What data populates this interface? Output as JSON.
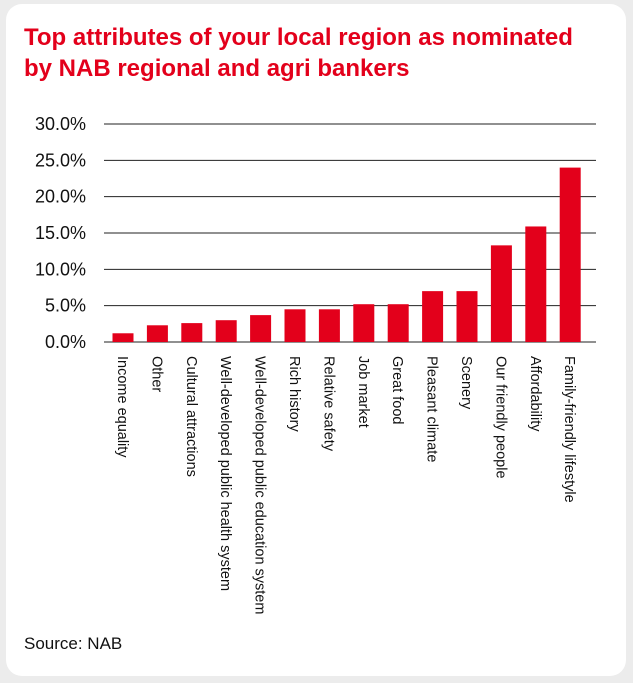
{
  "source": "Source: NAB",
  "chart_data": {
    "type": "bar",
    "title": "Top attributes of your local region as nominated by NAB regional and agri bankers",
    "xlabel": "",
    "ylabel": "",
    "ylim": [
      0,
      30
    ],
    "y_ticks": [
      "0.0%",
      "5.0%",
      "10.0%",
      "15.0%",
      "20.0%",
      "25.0%",
      "30.0%"
    ],
    "y_tick_values": [
      0,
      5,
      10,
      15,
      20,
      25,
      30
    ],
    "grid": true,
    "legend": "none",
    "bar_color": "#e3001b",
    "categories": [
      "Income equality",
      "Other",
      "Cultural attractions",
      "Well-developed public health system",
      "Well-developed public education system",
      "Rich history",
      "Relative safety",
      "Job market",
      "Great food",
      "Pleasant climate",
      "Scenery",
      "Our friendly people",
      "Affordability",
      "Family-friendly lifestyle"
    ],
    "values": [
      1.2,
      2.3,
      2.6,
      3.0,
      3.7,
      4.5,
      4.5,
      5.2,
      5.2,
      7.0,
      7.0,
      13.3,
      15.9,
      24.0
    ]
  }
}
